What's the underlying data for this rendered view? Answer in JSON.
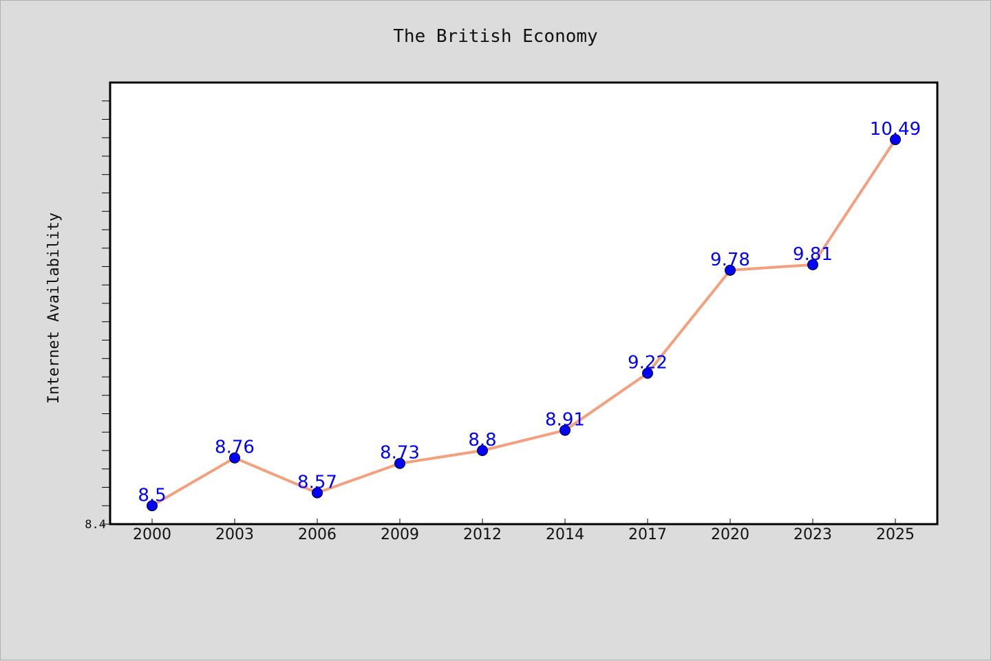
{
  "chart_data": {
    "type": "line",
    "title": "The British Economy",
    "xlabel": "",
    "ylabel": "Internet Availability",
    "categories": [
      "2000",
      "2003",
      "2006",
      "2009",
      "2012",
      "2014",
      "2017",
      "2020",
      "2023",
      "2025"
    ],
    "series": [
      {
        "values": [
          8.5,
          8.76,
          8.57,
          8.73,
          8.8,
          8.91,
          9.22,
          9.78,
          9.81,
          10.49
        ],
        "data_labels": [
          "8.5",
          "8.76",
          "8.57",
          "8.73",
          "8.8",
          "8.91",
          "9.22",
          "9.78",
          "9.81",
          "10.49"
        ]
      }
    ],
    "ylim": [
      8.4,
      10.8
    ],
    "yticks_labeled": [
      "8.4"
    ],
    "grid": false,
    "legend": "none",
    "colors": {
      "line": "#f4a07e",
      "marker": "#0000ff",
      "marker_edge": "#000000",
      "data_label": "#0000ff",
      "plot_background": "#ffffff",
      "figure_background": "#dcdcdc"
    }
  }
}
